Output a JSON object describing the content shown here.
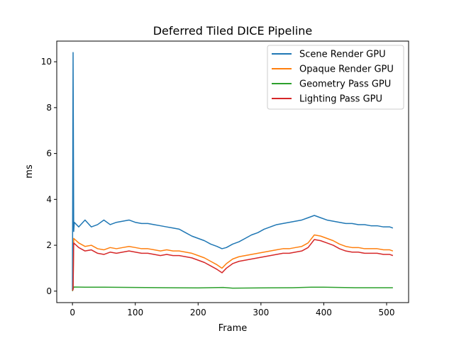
{
  "chart_data": {
    "type": "line",
    "title": "Deferred Tiled DICE Pipeline",
    "xlabel": "Frame",
    "ylabel": "ms",
    "xlim": [
      -25,
      535
    ],
    "ylim": [
      -0.5,
      10.9
    ],
    "xticks": [
      0,
      100,
      200,
      300,
      400,
      500
    ],
    "yticks": [
      0,
      2,
      4,
      6,
      8,
      10
    ],
    "legend_position": "top-right",
    "grid": false,
    "series": [
      {
        "name": "Scene Render GPU",
        "color": "#1f77b4",
        "points": [
          [
            0,
            0.05
          ],
          [
            1,
            10.4
          ],
          [
            2,
            2.6
          ],
          [
            3,
            3.0
          ],
          [
            10,
            2.8
          ],
          [
            20,
            3.1
          ],
          [
            30,
            2.8
          ],
          [
            40,
            2.9
          ],
          [
            50,
            3.1
          ],
          [
            60,
            2.9
          ],
          [
            70,
            3.0
          ],
          [
            80,
            3.05
          ],
          [
            90,
            3.1
          ],
          [
            100,
            3.0
          ],
          [
            110,
            2.95
          ],
          [
            120,
            2.95
          ],
          [
            130,
            2.9
          ],
          [
            140,
            2.85
          ],
          [
            150,
            2.8
          ],
          [
            160,
            2.75
          ],
          [
            170,
            2.7
          ],
          [
            180,
            2.55
          ],
          [
            190,
            2.4
          ],
          [
            200,
            2.3
          ],
          [
            210,
            2.2
          ],
          [
            220,
            2.05
          ],
          [
            230,
            1.95
          ],
          [
            238,
            1.85
          ],
          [
            245,
            1.9
          ],
          [
            255,
            2.05
          ],
          [
            265,
            2.15
          ],
          [
            275,
            2.3
          ],
          [
            285,
            2.45
          ],
          [
            295,
            2.55
          ],
          [
            305,
            2.7
          ],
          [
            315,
            2.8
          ],
          [
            325,
            2.9
          ],
          [
            335,
            2.95
          ],
          [
            345,
            3.0
          ],
          [
            355,
            3.05
          ],
          [
            365,
            3.1
          ],
          [
            375,
            3.2
          ],
          [
            385,
            3.3
          ],
          [
            395,
            3.2
          ],
          [
            405,
            3.1
          ],
          [
            415,
            3.05
          ],
          [
            425,
            3.0
          ],
          [
            435,
            2.95
          ],
          [
            445,
            2.95
          ],
          [
            455,
            2.9
          ],
          [
            465,
            2.9
          ],
          [
            475,
            2.85
          ],
          [
            485,
            2.85
          ],
          [
            495,
            2.8
          ],
          [
            505,
            2.8
          ],
          [
            510,
            2.75
          ]
        ]
      },
      {
        "name": "Opaque Render GPU",
        "color": "#ff7f0e",
        "points": [
          [
            0,
            0.02
          ],
          [
            1,
            0.1
          ],
          [
            2,
            2.3
          ],
          [
            10,
            2.1
          ],
          [
            20,
            1.95
          ],
          [
            30,
            2.0
          ],
          [
            40,
            1.85
          ],
          [
            50,
            1.8
          ],
          [
            60,
            1.9
          ],
          [
            70,
            1.85
          ],
          [
            80,
            1.9
          ],
          [
            90,
            1.95
          ],
          [
            100,
            1.9
          ],
          [
            110,
            1.85
          ],
          [
            120,
            1.85
          ],
          [
            130,
            1.8
          ],
          [
            140,
            1.75
          ],
          [
            150,
            1.8
          ],
          [
            160,
            1.75
          ],
          [
            170,
            1.75
          ],
          [
            180,
            1.7
          ],
          [
            190,
            1.65
          ],
          [
            200,
            1.55
          ],
          [
            210,
            1.45
          ],
          [
            220,
            1.3
          ],
          [
            230,
            1.15
          ],
          [
            238,
            1.0
          ],
          [
            245,
            1.2
          ],
          [
            255,
            1.4
          ],
          [
            265,
            1.5
          ],
          [
            275,
            1.55
          ],
          [
            285,
            1.6
          ],
          [
            295,
            1.65
          ],
          [
            305,
            1.7
          ],
          [
            315,
            1.75
          ],
          [
            325,
            1.8
          ],
          [
            335,
            1.85
          ],
          [
            345,
            1.85
          ],
          [
            355,
            1.9
          ],
          [
            365,
            1.95
          ],
          [
            375,
            2.1
          ],
          [
            385,
            2.45
          ],
          [
            395,
            2.4
          ],
          [
            405,
            2.3
          ],
          [
            415,
            2.2
          ],
          [
            425,
            2.05
          ],
          [
            435,
            1.95
          ],
          [
            445,
            1.9
          ],
          [
            455,
            1.9
          ],
          [
            465,
            1.85
          ],
          [
            475,
            1.85
          ],
          [
            485,
            1.85
          ],
          [
            495,
            1.8
          ],
          [
            505,
            1.8
          ],
          [
            510,
            1.75
          ]
        ]
      },
      {
        "name": "Geometry Pass GPU",
        "color": "#2ca02c",
        "points": [
          [
            0,
            0.0
          ],
          [
            2,
            0.18
          ],
          [
            20,
            0.17
          ],
          [
            50,
            0.17
          ],
          [
            100,
            0.16
          ],
          [
            150,
            0.15
          ],
          [
            200,
            0.14
          ],
          [
            240,
            0.16
          ],
          [
            255,
            0.13
          ],
          [
            300,
            0.14
          ],
          [
            350,
            0.15
          ],
          [
            380,
            0.17
          ],
          [
            400,
            0.17
          ],
          [
            450,
            0.15
          ],
          [
            510,
            0.15
          ]
        ]
      },
      {
        "name": "Lighting Pass GPU",
        "color": "#d62728",
        "points": [
          [
            0,
            0.02
          ],
          [
            1,
            0.08
          ],
          [
            2,
            2.1
          ],
          [
            10,
            1.9
          ],
          [
            20,
            1.75
          ],
          [
            30,
            1.8
          ],
          [
            40,
            1.65
          ],
          [
            50,
            1.6
          ],
          [
            60,
            1.7
          ],
          [
            70,
            1.65
          ],
          [
            80,
            1.7
          ],
          [
            90,
            1.75
          ],
          [
            100,
            1.7
          ],
          [
            110,
            1.65
          ],
          [
            120,
            1.65
          ],
          [
            130,
            1.6
          ],
          [
            140,
            1.55
          ],
          [
            150,
            1.6
          ],
          [
            160,
            1.55
          ],
          [
            170,
            1.55
          ],
          [
            180,
            1.5
          ],
          [
            190,
            1.45
          ],
          [
            200,
            1.35
          ],
          [
            210,
            1.25
          ],
          [
            220,
            1.1
          ],
          [
            230,
            0.95
          ],
          [
            238,
            0.8
          ],
          [
            245,
            1.0
          ],
          [
            255,
            1.2
          ],
          [
            265,
            1.3
          ],
          [
            275,
            1.35
          ],
          [
            285,
            1.4
          ],
          [
            295,
            1.45
          ],
          [
            305,
            1.5
          ],
          [
            315,
            1.55
          ],
          [
            325,
            1.6
          ],
          [
            335,
            1.65
          ],
          [
            345,
            1.65
          ],
          [
            355,
            1.7
          ],
          [
            365,
            1.75
          ],
          [
            375,
            1.9
          ],
          [
            385,
            2.25
          ],
          [
            395,
            2.2
          ],
          [
            405,
            2.1
          ],
          [
            415,
            2.0
          ],
          [
            425,
            1.85
          ],
          [
            435,
            1.75
          ],
          [
            445,
            1.7
          ],
          [
            455,
            1.7
          ],
          [
            465,
            1.65
          ],
          [
            475,
            1.65
          ],
          [
            485,
            1.65
          ],
          [
            495,
            1.6
          ],
          [
            505,
            1.6
          ],
          [
            510,
            1.55
          ]
        ]
      }
    ]
  }
}
